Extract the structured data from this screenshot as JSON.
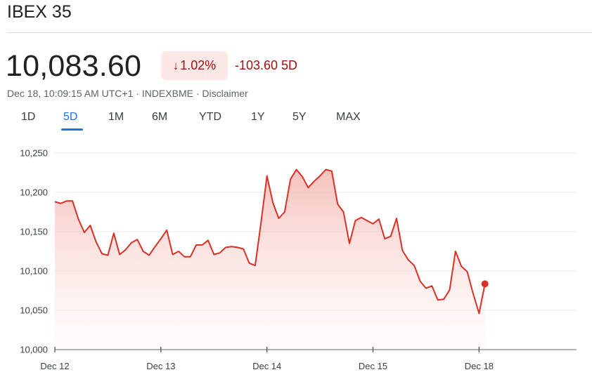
{
  "header": {
    "title": "IBEX 35"
  },
  "quote": {
    "price": "10,083.60",
    "percent_change": "1.02%",
    "direction_icon": "arrow-down-icon",
    "point_change": "-103.60 5D",
    "subline": "Dec 18, 10:09:15 AM UTC+1 · INDEXBME · Disclaimer"
  },
  "colors": {
    "accent": "#1a73e8",
    "negative": "#a50e0e",
    "line": "#d93025",
    "badge_bg": "#fce8e6"
  },
  "tabs": [
    {
      "label": "1D",
      "active": false
    },
    {
      "label": "5D",
      "active": true
    },
    {
      "label": "1M",
      "active": false
    },
    {
      "label": "6M",
      "active": false
    },
    {
      "label": "YTD",
      "active": false
    },
    {
      "label": "1Y",
      "active": false
    },
    {
      "label": "5Y",
      "active": false
    },
    {
      "label": "MAX",
      "active": false
    }
  ],
  "chart_data": {
    "type": "area",
    "ylim": [
      10000,
      10250
    ],
    "y_ticks": [
      "10,000",
      "10,050",
      "10,100",
      "10,150",
      "10,200",
      "10,250"
    ],
    "y_tick_values": [
      10000,
      10050,
      10100,
      10150,
      10200,
      10250
    ],
    "x_tick_labels": [
      "Dec 12",
      "Dec 13",
      "Dec 14",
      "Dec 15",
      "Dec 18"
    ],
    "grid": true,
    "series": [
      {
        "values": [
          10188,
          10186,
          10189,
          10189,
          10166,
          10149,
          10158,
          10137,
          10122,
          10120,
          10148,
          10121,
          10127,
          10136,
          10140,
          10125,
          10120,
          10131,
          10141,
          10152,
          10121,
          10125,
          10118,
          10118,
          10133,
          10133,
          10139,
          10121,
          10123,
          10130,
          10131,
          10130,
          10128,
          10110,
          10107,
          10162,
          10221,
          10187,
          10167,
          10175,
          10217,
          10229,
          10220,
          10206,
          10214,
          10221,
          10229,
          10227,
          10185,
          10175,
          10135,
          10164,
          10168,
          10164,
          10160,
          10166,
          10141,
          10144,
          10167,
          10126,
          10114,
          10107,
          10087,
          10078,
          10081,
          10063,
          10064,
          10076,
          10125,
          10106,
          10099,
          10071,
          10046,
          10083.6
        ]
      }
    ]
  }
}
